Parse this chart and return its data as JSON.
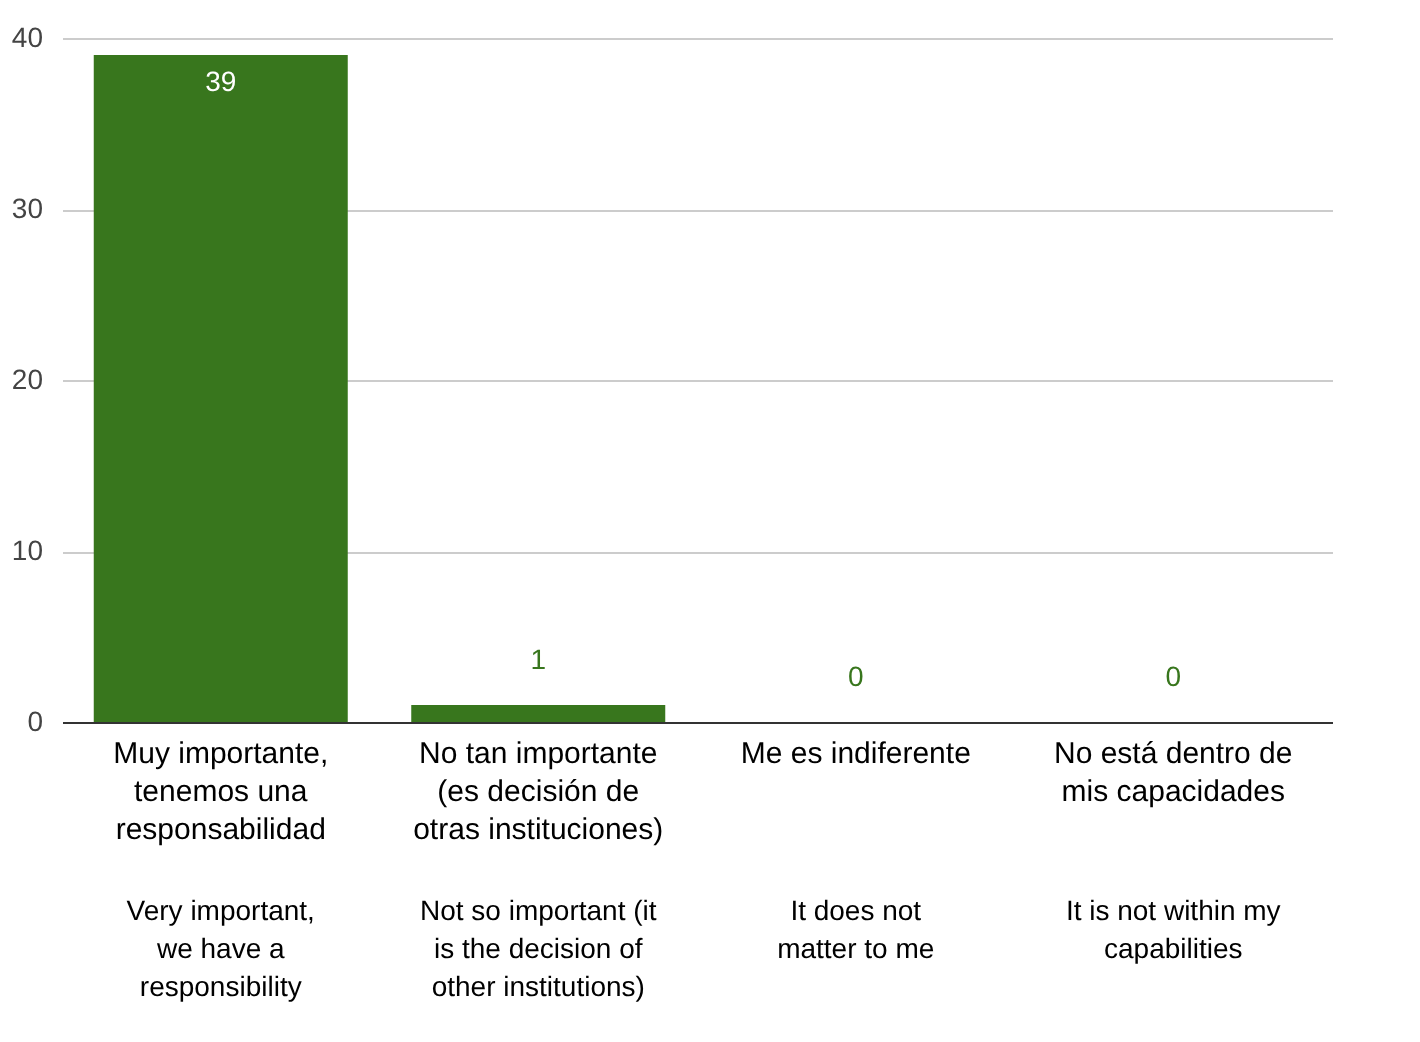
{
  "chart_data": {
    "type": "bar",
    "categories": [
      "Muy importante,\ntenemos una\nresponsabilidad",
      "No tan importante\n(es decisión de\notras instituciones)",
      "Me es indiferente",
      "No está dentro de\nmis capacidades"
    ],
    "values": [
      39,
      1,
      0,
      0
    ],
    "color": "#38761d",
    "ylim": [
      0,
      40
    ],
    "yticks": [
      0,
      10,
      20,
      30,
      40
    ],
    "grid": "y",
    "data_labels": true,
    "annotations": [
      "Very important,\nwe have a\nresponsibility",
      "Not so important (it\nis the decision of\nother institutions)",
      "It does not\nmatter to me",
      "It is not within my\ncapabilities"
    ]
  }
}
